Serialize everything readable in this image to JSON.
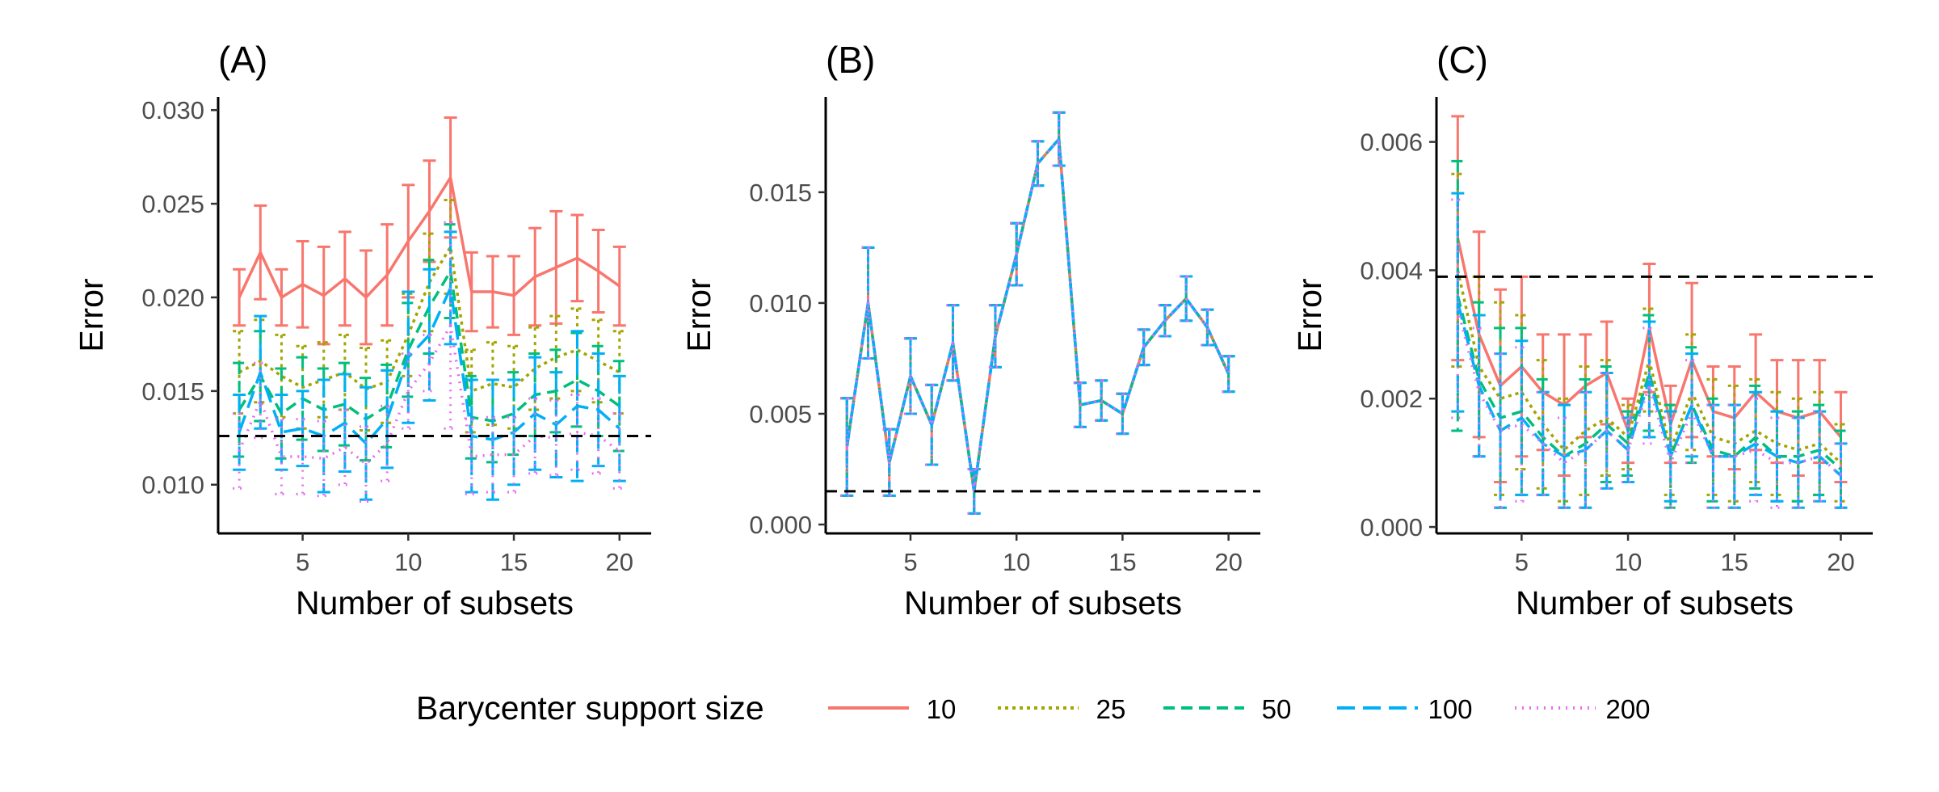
{
  "legend": {
    "title": "Barycenter support size",
    "items": [
      {
        "label": "10",
        "color": "#F8766D",
        "dash": "solid"
      },
      {
        "label": "25",
        "color": "#A3A500",
        "dash": "dotted"
      },
      {
        "label": "50",
        "color": "#00BF7D",
        "dash": "dashed"
      },
      {
        "label": "100",
        "color": "#00B0F6",
        "dash": "longdash"
      },
      {
        "label": "200",
        "color": "#E76BF3",
        "dash": "dot"
      }
    ]
  },
  "chart_data": [
    {
      "type": "line",
      "panel_label": "(A)",
      "xlabel": "Number of subsets",
      "ylabel": "Error",
      "x": [
        2,
        3,
        4,
        5,
        6,
        7,
        8,
        9,
        10,
        11,
        12,
        13,
        14,
        15,
        16,
        17,
        18,
        19,
        20
      ],
      "xlim": [
        1.0,
        21.5
      ],
      "ylim": [
        0.0074,
        0.0307
      ],
      "xticks": [
        5,
        10,
        15,
        20
      ],
      "yticks": [
        "0.010",
        "0.015",
        "0.020",
        "0.025",
        "0.030"
      ],
      "hline": 0.0126,
      "grid": false,
      "series": [
        {
          "name": "10",
          "values": [
            0.02,
            0.0224,
            0.02,
            0.0207,
            0.0201,
            0.021,
            0.02,
            0.0212,
            0.023,
            0.0246,
            0.0264,
            0.0203,
            0.0203,
            0.0201,
            0.0211,
            0.0216,
            0.0221,
            0.0214,
            0.0206
          ],
          "err": [
            0.0015,
            0.0025,
            0.0015,
            0.0023,
            0.0026,
            0.0025,
            0.0025,
            0.0027,
            0.003,
            0.0027,
            0.0032,
            0.0021,
            0.0019,
            0.0021,
            0.0026,
            0.003,
            0.0023,
            0.0022,
            0.0021
          ]
        },
        {
          "name": "25",
          "values": [
            0.016,
            0.0166,
            0.0158,
            0.0152,
            0.0156,
            0.016,
            0.0151,
            0.0155,
            0.018,
            0.0208,
            0.0227,
            0.015,
            0.0154,
            0.0152,
            0.0162,
            0.0168,
            0.0172,
            0.0166,
            0.016
          ],
          "err": [
            0.0022,
            0.0022,
            0.0022,
            0.0022,
            0.002,
            0.002,
            0.0022,
            0.0022,
            0.0022,
            0.0026,
            0.0025,
            0.0022,
            0.0022,
            0.0022,
            0.0022,
            0.0022,
            0.0022,
            0.0022,
            0.0022
          ]
        },
        {
          "name": "50",
          "values": [
            0.014,
            0.0158,
            0.0138,
            0.0146,
            0.014,
            0.0143,
            0.0135,
            0.0142,
            0.0172,
            0.0195,
            0.0214,
            0.0136,
            0.0134,
            0.0138,
            0.0148,
            0.015,
            0.0156,
            0.015,
            0.0142
          ],
          "err": [
            0.0025,
            0.0024,
            0.0024,
            0.0022,
            0.0022,
            0.0022,
            0.0022,
            0.0022,
            0.0025,
            0.0025,
            0.0025,
            0.0022,
            0.0022,
            0.0022,
            0.0022,
            0.0022,
            0.0025,
            0.0024,
            0.0024
          ]
        },
        {
          "name": "100",
          "values": [
            0.0128,
            0.016,
            0.0128,
            0.013,
            0.0126,
            0.0133,
            0.0122,
            0.0135,
            0.0168,
            0.018,
            0.0205,
            0.0126,
            0.0124,
            0.0128,
            0.0138,
            0.0132,
            0.0142,
            0.014,
            0.013
          ],
          "err": [
            0.002,
            0.003,
            0.002,
            0.002,
            0.003,
            0.0026,
            0.003,
            0.0026,
            0.0035,
            0.0035,
            0.003,
            0.003,
            0.0032,
            0.0028,
            0.003,
            0.0028,
            0.004,
            0.003,
            0.0028
          ]
        },
        {
          "name": "200",
          "values": [
            0.0118,
            0.0145,
            0.0115,
            0.0115,
            0.0114,
            0.012,
            0.0111,
            0.0122,
            0.015,
            0.0165,
            0.0185,
            0.0115,
            0.0116,
            0.0116,
            0.0126,
            0.0125,
            0.0128,
            0.0126,
            0.0118
          ],
          "err": [
            0.002,
            0.002,
            0.002,
            0.002,
            0.002,
            0.002,
            0.002,
            0.002,
            0.002,
            0.0015,
            0.0055,
            0.002,
            0.002,
            0.002,
            0.002,
            0.002,
            0.002,
            0.002,
            0.002
          ]
        }
      ]
    },
    {
      "type": "line",
      "panel_label": "(B)",
      "xlabel": "Number of subsets",
      "ylabel": "Error",
      "x": [
        2,
        3,
        4,
        5,
        6,
        7,
        8,
        9,
        10,
        11,
        12,
        13,
        14,
        15,
        16,
        17,
        18,
        19,
        20
      ],
      "xlim": [
        1.0,
        21.5
      ],
      "ylim": [
        -0.0004,
        0.0193
      ],
      "xticks": [
        5,
        10,
        15,
        20
      ],
      "yticks": [
        "0.000",
        "0.005",
        "0.010",
        "0.015"
      ],
      "hline": 0.0015,
      "grid": false,
      "series": [
        {
          "name": "10",
          "values": [
            0.0035,
            0.01,
            0.0028,
            0.0067,
            0.0045,
            0.0082,
            0.0015,
            0.0085,
            0.0122,
            0.0163,
            0.0174,
            0.0054,
            0.0056,
            0.005,
            0.008,
            0.0092,
            0.0102,
            0.0089,
            0.0068
          ],
          "err": [
            0.0022,
            0.0025,
            0.0015,
            0.0017,
            0.0018,
            0.0017,
            0.001,
            0.0014,
            0.0014,
            0.001,
            0.0012,
            0.001,
            0.0009,
            0.0009,
            0.0008,
            0.0007,
            0.001,
            0.0008,
            0.0008
          ]
        },
        {
          "name": "25",
          "values": [
            0.0035,
            0.01,
            0.0028,
            0.0067,
            0.0045,
            0.0082,
            0.0015,
            0.0085,
            0.0122,
            0.0163,
            0.0174,
            0.0054,
            0.0056,
            0.005,
            0.008,
            0.0092,
            0.0102,
            0.0089,
            0.0068
          ],
          "err": [
            0.0022,
            0.0025,
            0.0015,
            0.0017,
            0.0018,
            0.0017,
            0.001,
            0.0014,
            0.0014,
            0.001,
            0.0012,
            0.001,
            0.0009,
            0.0009,
            0.0008,
            0.0007,
            0.001,
            0.0008,
            0.0008
          ]
        },
        {
          "name": "50",
          "values": [
            0.0035,
            0.01,
            0.0028,
            0.0067,
            0.0045,
            0.0082,
            0.0015,
            0.0085,
            0.0122,
            0.0163,
            0.0174,
            0.0054,
            0.0056,
            0.005,
            0.008,
            0.0092,
            0.0102,
            0.0089,
            0.0068
          ],
          "err": [
            0.0022,
            0.0025,
            0.0015,
            0.0017,
            0.0018,
            0.0017,
            0.001,
            0.0014,
            0.0014,
            0.001,
            0.0012,
            0.001,
            0.0009,
            0.0009,
            0.0008,
            0.0007,
            0.001,
            0.0008,
            0.0008
          ]
        },
        {
          "name": "100",
          "values": [
            0.0035,
            0.01,
            0.0028,
            0.0067,
            0.0045,
            0.0082,
            0.0015,
            0.0085,
            0.0122,
            0.0163,
            0.0174,
            0.0054,
            0.0056,
            0.005,
            0.008,
            0.0092,
            0.0102,
            0.0089,
            0.0068
          ],
          "err": [
            0.0022,
            0.0025,
            0.0015,
            0.0017,
            0.0018,
            0.0017,
            0.001,
            0.0014,
            0.0014,
            0.001,
            0.0012,
            0.001,
            0.0009,
            0.0009,
            0.0008,
            0.0007,
            0.001,
            0.0008,
            0.0008
          ]
        },
        {
          "name": "200",
          "values": [
            0.0035,
            0.01,
            0.0028,
            0.0067,
            0.0045,
            0.0082,
            0.0015,
            0.0085,
            0.0122,
            0.0163,
            0.0174,
            0.0054,
            0.0056,
            0.005,
            0.008,
            0.0092,
            0.0102,
            0.0089,
            0.0068
          ],
          "err": [
            0.0022,
            0.0025,
            0.0015,
            0.0017,
            0.0018,
            0.0017,
            0.001,
            0.0014,
            0.0014,
            0.001,
            0.0012,
            0.001,
            0.0009,
            0.0009,
            0.0008,
            0.0007,
            0.001,
            0.0008,
            0.0008
          ]
        }
      ]
    },
    {
      "type": "line",
      "panel_label": "(C)",
      "xlabel": "Number of subsets",
      "ylabel": "Error",
      "x": [
        2,
        3,
        4,
        5,
        6,
        7,
        8,
        9,
        10,
        11,
        12,
        13,
        14,
        15,
        16,
        17,
        18,
        19,
        20
      ],
      "xlim": [
        1.0,
        21.5
      ],
      "ylim": [
        -0.0001,
        0.0067
      ],
      "xticks": [
        5,
        10,
        15,
        20
      ],
      "yticks": [
        "0.000",
        "0.002",
        "0.004",
        "0.006"
      ],
      "hline": 0.0039,
      "grid": false,
      "series": [
        {
          "name": "10",
          "values": [
            0.0045,
            0.003,
            0.0022,
            0.0025,
            0.0021,
            0.0019,
            0.0022,
            0.0024,
            0.0015,
            0.0031,
            0.0016,
            0.0026,
            0.0018,
            0.0017,
            0.0021,
            0.0018,
            0.0017,
            0.0018,
            0.0014
          ],
          "err": [
            0.0019,
            0.0016,
            0.0015,
            0.0014,
            0.0009,
            0.0011,
            0.0008,
            0.0008,
            0.0005,
            0.001,
            0.0006,
            0.0012,
            0.0007,
            0.0008,
            0.0009,
            0.0008,
            0.0009,
            0.0008,
            0.0007
          ]
        },
        {
          "name": "25",
          "values": [
            0.004,
            0.0025,
            0.002,
            0.0021,
            0.0016,
            0.0012,
            0.0015,
            0.0017,
            0.0014,
            0.0026,
            0.0012,
            0.0021,
            0.0014,
            0.0013,
            0.0015,
            0.0013,
            0.0012,
            0.0013,
            0.001
          ],
          "err": [
            0.0015,
            0.0014,
            0.0015,
            0.0012,
            0.001,
            0.0008,
            0.001,
            0.0009,
            0.0005,
            0.0008,
            0.0007,
            0.0009,
            0.0009,
            0.0009,
            0.0008,
            0.0008,
            0.0008,
            0.0008,
            0.0006
          ]
        },
        {
          "name": "50",
          "values": [
            0.0036,
            0.0023,
            0.0017,
            0.0018,
            0.0014,
            0.0011,
            0.0013,
            0.0016,
            0.0013,
            0.0024,
            0.0011,
            0.0019,
            0.0012,
            0.0011,
            0.0014,
            0.0011,
            0.0011,
            0.0012,
            0.0009
          ],
          "err": [
            0.0021,
            0.0012,
            0.0014,
            0.0013,
            0.0009,
            0.0008,
            0.001,
            0.0009,
            0.0005,
            0.0009,
            0.0008,
            0.0009,
            0.0008,
            0.0008,
            0.0008,
            0.0007,
            0.0007,
            0.0007,
            0.0006
          ]
        },
        {
          "name": "100",
          "values": [
            0.0035,
            0.0022,
            0.0015,
            0.0017,
            0.0013,
            0.0011,
            0.0012,
            0.0015,
            0.0012,
            0.0023,
            0.0011,
            0.0019,
            0.0011,
            0.0011,
            0.0013,
            0.0011,
            0.001,
            0.0011,
            0.0008
          ],
          "err": [
            0.0017,
            0.0011,
            0.0012,
            0.0012,
            0.0008,
            0.0008,
            0.0009,
            0.0009,
            0.0005,
            0.0009,
            0.0007,
            0.0008,
            0.0008,
            0.0008,
            0.0008,
            0.0007,
            0.0007,
            0.0007,
            0.0005
          ]
        },
        {
          "name": "200",
          "values": [
            0.0034,
            0.0021,
            0.0015,
            0.0016,
            0.0013,
            0.001,
            0.0012,
            0.0015,
            0.0012,
            0.0022,
            0.001,
            0.0018,
            0.0011,
            0.0011,
            0.0012,
            0.001,
            0.001,
            0.0011,
            0.0008
          ],
          "err": [
            0.0017,
            0.001,
            0.0012,
            0.0012,
            0.0008,
            0.0007,
            0.0009,
            0.0009,
            0.0005,
            0.0009,
            0.0007,
            0.0008,
            0.0008,
            0.0008,
            0.0008,
            0.0007,
            0.0007,
            0.0007,
            0.0005
          ]
        }
      ]
    }
  ]
}
